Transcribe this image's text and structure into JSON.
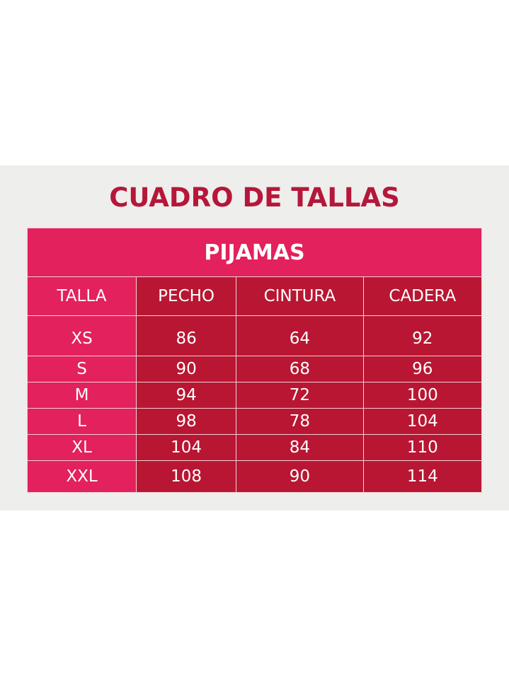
{
  "title": "CUADRO DE TALLAS",
  "subtitle": "PIJAMAS",
  "columns": [
    "TALLA",
    "PECHO",
    "CINTURA",
    "CADERA"
  ],
  "rows": [
    [
      "XS",
      "86",
      "64",
      "92"
    ],
    [
      "S",
      "90",
      "68",
      "96"
    ],
    [
      "M",
      "94",
      "72",
      "100"
    ],
    [
      "L",
      "98",
      "78",
      "104"
    ],
    [
      "XL",
      "104",
      "84",
      "110"
    ],
    [
      "XXL",
      "108",
      "90",
      "114"
    ]
  ],
  "colors": {
    "title": "#b5173a",
    "pink": "#e3215c",
    "dark_red": "#b81632",
    "background": "#eeeeec"
  }
}
